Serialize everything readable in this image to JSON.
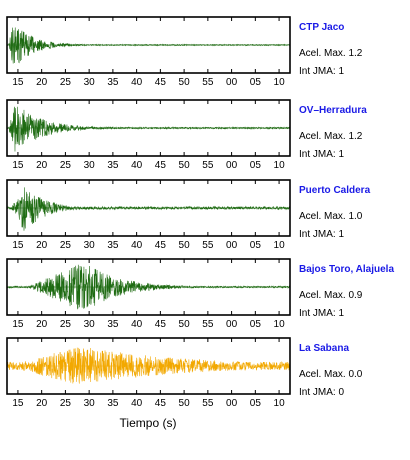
{
  "chart_data": {
    "type": "line",
    "xlabel": "Tiempo (s)",
    "x_tick_labels": [
      "15",
      "20",
      "25",
      "30",
      "35",
      "40",
      "45",
      "50",
      "55",
      "00",
      "05",
      "10"
    ],
    "label_color": "#1a1ae6",
    "accel_prefix": "Acel. Max.",
    "intensity_prefix": "Int JMA:",
    "grid": false,
    "series": [
      {
        "name": "CTP Jaco",
        "acel_max": "1.2",
        "int_jma": "1",
        "color": "#1e6b12",
        "onset": 13.0,
        "peak": 14.0,
        "decay": 4.0,
        "amplitude": 0.9,
        "noise": 0.02
      },
      {
        "name": "OV–Herradura",
        "acel_max": "1.2",
        "int_jma": "1",
        "color": "#1e6b12",
        "onset": 13.0,
        "peak": 14.5,
        "decay": 5.5,
        "amplitude": 0.95,
        "noise": 0.03
      },
      {
        "name": "Puerto Caldera",
        "acel_max": "1.0",
        "int_jma": "1",
        "color": "#1e6b12",
        "onset": 13.5,
        "peak": 16.5,
        "decay": 4.0,
        "amplitude": 0.92,
        "noise": 0.05
      },
      {
        "name": "Bajos Toro, Alajuela",
        "acel_max": "0.9",
        "int_jma": "1",
        "color": "#1e6b12",
        "onset": 17.0,
        "peak": 29.0,
        "decay": 7.0,
        "amplitude": 0.95,
        "noise": 0.03
      },
      {
        "name": "La Sabana",
        "acel_max": "0.0",
        "int_jma": "0",
        "color": "#f2a800",
        "onset": 13.0,
        "peak": 28.0,
        "decay": 22.0,
        "amplitude": 0.75,
        "noise": 0.15
      }
    ]
  }
}
